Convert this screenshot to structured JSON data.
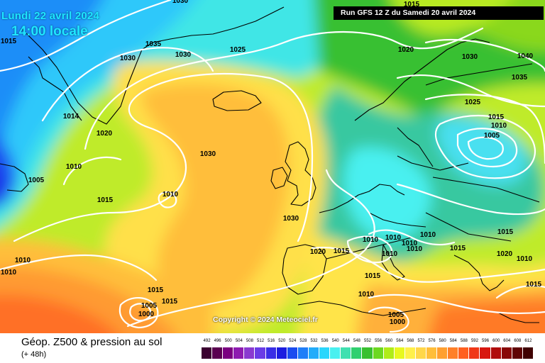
{
  "header": {
    "date": "Lundi 22 avril 2024",
    "time": "14:00 locale",
    "run": "Run GFS 12 Z du Samedi 20 avril 2024"
  },
  "copyright": "Copyright © 2024 Meteociel.fr",
  "legend": {
    "title": "Géop. Z500 & pression au sol",
    "subtitle": "(+ 48h)",
    "scale": [
      {
        "value": "492",
        "color": "#3b0030"
      },
      {
        "value": "496",
        "color": "#5a0050"
      },
      {
        "value": "500",
        "color": "#7a0080"
      },
      {
        "value": "504",
        "color": "#8e1cb0"
      },
      {
        "value": "508",
        "color": "#8a3ad0"
      },
      {
        "value": "512",
        "color": "#6a3ce6"
      },
      {
        "value": "516",
        "color": "#3a2ee6"
      },
      {
        "value": "520",
        "color": "#1c1ce0"
      },
      {
        "value": "524",
        "color": "#1a4cf0"
      },
      {
        "value": "528",
        "color": "#1f7ef8"
      },
      {
        "value": "532",
        "color": "#23acfa"
      },
      {
        "value": "536",
        "color": "#2ad6fc"
      },
      {
        "value": "540",
        "color": "#4af0f0"
      },
      {
        "value": "544",
        "color": "#40e0b0"
      },
      {
        "value": "548",
        "color": "#30d070"
      },
      {
        "value": "552",
        "color": "#38c030"
      },
      {
        "value": "556",
        "color": "#6cd820"
      },
      {
        "value": "560",
        "color": "#b0ec18"
      },
      {
        "value": "564",
        "color": "#e8f820"
      },
      {
        "value": "568",
        "color": "#fff04a"
      },
      {
        "value": "572",
        "color": "#ffd74a"
      },
      {
        "value": "576",
        "color": "#ffbe3a"
      },
      {
        "value": "580",
        "color": "#ffa030"
      },
      {
        "value": "584",
        "color": "#ff8028"
      },
      {
        "value": "588",
        "color": "#ff6020"
      },
      {
        "value": "592",
        "color": "#f03818"
      },
      {
        "value": "596",
        "color": "#d81810"
      },
      {
        "value": "600",
        "color": "#b00c0c"
      },
      {
        "value": "604",
        "color": "#880808"
      },
      {
        "value": "608",
        "color": "#600404"
      },
      {
        "value": "612",
        "color": "#400202"
      }
    ]
  },
  "isobars": [
    {
      "label": "1030",
      "text_color": "#000000"
    },
    {
      "label": "1015",
      "text_color": "#000000"
    },
    {
      "label": "1030",
      "text_color": "#000000"
    },
    {
      "label": "1035",
      "text_color": "#000000"
    },
    {
      "label": "1030",
      "text_color": "#000000"
    },
    {
      "label": "1025",
      "text_color": "#000000"
    },
    {
      "label": "1020",
      "text_color": "#000000"
    },
    {
      "label": "1030",
      "text_color": "#000000"
    },
    {
      "label": "1040",
      "text_color": "#000000"
    },
    {
      "label": "1035",
      "text_color": "#000000"
    },
    {
      "label": "1014",
      "text_color": "#000000"
    },
    {
      "label": "1020",
      "text_color": "#000000"
    },
    {
      "label": "1030",
      "text_color": "#000000"
    },
    {
      "label": "1025",
      "text_color": "#000000"
    },
    {
      "label": "1015",
      "text_color": "#000000"
    },
    {
      "label": "1010",
      "text_color": "#000000"
    },
    {
      "label": "1005",
      "text_color": "#000000"
    },
    {
      "label": "1010",
      "text_color": "#000000"
    },
    {
      "label": "1005",
      "text_color": "#000000"
    },
    {
      "label": "1010",
      "text_color": "#000000"
    },
    {
      "label": "1015",
      "text_color": "#000000"
    },
    {
      "label": "1030",
      "text_color": "#000000"
    },
    {
      "label": "1010",
      "text_color": "#000000"
    },
    {
      "label": "1010",
      "text_color": "#000000"
    },
    {
      "label": "1010",
      "text_color": "#000000"
    },
    {
      "label": "1020",
      "text_color": "#000000"
    },
    {
      "label": "1015",
      "text_color": "#000000"
    },
    {
      "label": "1010",
      "text_color": "#000000"
    },
    {
      "label": "1010",
      "text_color": "#000000"
    },
    {
      "label": "1010",
      "text_color": "#000000"
    },
    {
      "label": "1010",
      "text_color": "#000000"
    },
    {
      "label": "1015",
      "text_color": "#000000"
    },
    {
      "label": "1020",
      "text_color": "#000000"
    },
    {
      "label": "1015",
      "text_color": "#000000"
    },
    {
      "label": "1010",
      "text_color": "#000000"
    },
    {
      "label": "1010",
      "text_color": "#000000"
    },
    {
      "label": "1015",
      "text_color": "#000000"
    },
    {
      "label": "1010",
      "text_color": "#000000"
    },
    {
      "label": "1015",
      "text_color": "#000000"
    },
    {
      "label": "1005",
      "text_color": "#000000"
    },
    {
      "label": "1000",
      "text_color": "#000000"
    },
    {
      "label": "1015",
      "text_color": "#000000"
    },
    {
      "label": "1005",
      "text_color": "#000000"
    },
    {
      "label": "1000",
      "text_color": "#000000"
    },
    {
      "label": "1015",
      "text_color": "#000000"
    },
    {
      "label": "1015",
      "text_color": "#000000"
    }
  ]
}
